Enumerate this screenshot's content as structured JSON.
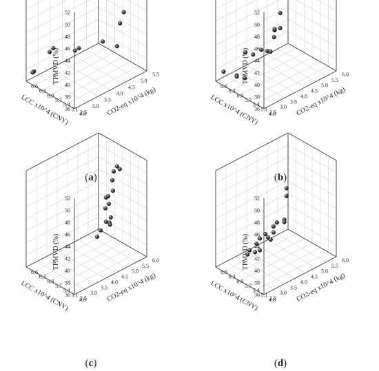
{
  "chart_data": [
    {
      "type": "scatter",
      "panel_label": "a",
      "xlabel": "LCC x10^4 (CNY)",
      "ylabel": "CO2-eq x10^4 (kg)",
      "zlabel": "TPMVD (%)",
      "xlim": [
        4.8,
        6.6
      ],
      "ylim": [
        2.5,
        5.5
      ],
      "zlim": [
        36,
        52
      ],
      "x_ticks": [
        "4.8",
        "5.1",
        "5.4",
        "5.7",
        "6.0",
        "6.3",
        "6.6"
      ],
      "y_ticks": [
        "2.5",
        "3.0",
        "3.5",
        "4.0",
        "4.5",
        "5.0",
        "5.5"
      ],
      "z_ticks": [
        "36",
        "38",
        "40",
        "42",
        "44",
        "46",
        "48",
        "50",
        "52"
      ],
      "points": [
        {
          "x": 5.39,
          "y": 5.0,
          "z": 51.6
        },
        {
          "x": 5.48,
          "y": 5.18,
          "z": 51.2
        },
        {
          "x": 5.5,
          "y": 4.95,
          "z": 47.6
        },
        {
          "x": 5.12,
          "y": 4.9,
          "z": 46.2
        },
        {
          "x": 5.26,
          "y": 4.9,
          "z": 44.0
        },
        {
          "x": 4.92,
          "y": 4.4,
          "z": 42.1
        },
        {
          "x": 5.5,
          "y": 4.45,
          "z": 41.3
        },
        {
          "x": 6.21,
          "y": 4.25,
          "z": 38.8
        },
        {
          "x": 6.22,
          "y": 4.1,
          "z": 38.7
        },
        {
          "x": 6.4,
          "y": 3.25,
          "z": 39.8
        },
        {
          "x": 6.4,
          "y": 3.4,
          "z": 40.1
        },
        {
          "x": 6.53,
          "y": 2.75,
          "z": 37.3
        },
        {
          "x": 6.54,
          "y": 2.7,
          "z": 37.2
        }
      ]
    },
    {
      "type": "scatter",
      "panel_label": "b",
      "xlabel": "LCC x10^4 (CNY)",
      "ylabel": "CO2-eq x10^4 (kg)",
      "zlabel": "TPMVD (%)",
      "xlim": [
        4.8,
        6.6
      ],
      "ylim": [
        2.5,
        6.0
      ],
      "zlim": [
        36,
        52
      ],
      "x_ticks": [
        "4.8",
        "5.1",
        "5.4",
        "5.7",
        "6.0",
        "6.3",
        "6.6"
      ],
      "y_ticks": [
        "2.5",
        "3.0",
        "3.5",
        "4.0",
        "4.5",
        "5.0",
        "5.5",
        "6.0"
      ],
      "z_ticks": [
        "36",
        "38",
        "40",
        "42",
        "44",
        "46",
        "48",
        "50",
        "52"
      ],
      "points": [
        {
          "x": 5.35,
          "y": 4.0,
          "z": 47.8
        },
        {
          "x": 5.35,
          "y": 4.0,
          "z": 45.3
        },
        {
          "x": 5.48,
          "y": 3.9,
          "z": 45.0
        },
        {
          "x": 5.52,
          "y": 3.95,
          "z": 44.6
        },
        {
          "x": 5.5,
          "y": 3.9,
          "z": 43.6
        },
        {
          "x": 5.48,
          "y": 3.7,
          "z": 41.6
        },
        {
          "x": 5.6,
          "y": 3.7,
          "z": 41.4
        },
        {
          "x": 5.75,
          "y": 3.6,
          "z": 41.4
        },
        {
          "x": 5.9,
          "y": 3.4,
          "z": 40.6
        },
        {
          "x": 6.15,
          "y": 3.35,
          "z": 40.4
        },
        {
          "x": 5.9,
          "y": 3.0,
          "z": 37.4
        },
        {
          "x": 6.2,
          "y": 3.0,
          "z": 37.1
        },
        {
          "x": 6.2,
          "y": 3.0,
          "z": 36.9
        },
        {
          "x": 6.5,
          "y": 2.75,
          "z": 37.4
        }
      ]
    },
    {
      "type": "scatter",
      "panel_label": "c",
      "xlabel": "LCC x10^4 (CNY)",
      "ylabel": "CO2-eq x10^4 (kg)",
      "zlabel": "TPMVD (%)",
      "xlim": [
        4.8,
        6.6
      ],
      "ylim": [
        2.5,
        6.0
      ],
      "zlim": [
        36,
        52
      ],
      "x_ticks": [
        "4.8",
        "5.1",
        "5.4",
        "5.7",
        "6.0",
        "6.3",
        "6.6"
      ],
      "y_ticks": [
        "2.5",
        "3.0",
        "3.5",
        "4.0",
        "4.5",
        "5.0",
        "5.5",
        "6.0"
      ],
      "z_ticks": [
        "36",
        "38",
        "40",
        "42",
        "44",
        "46",
        "48",
        "50",
        "52"
      ],
      "points": [
        {
          "x": 5.5,
          "y": 5.6,
          "z": 49.5
        },
        {
          "x": 5.6,
          "y": 5.6,
          "z": 49.7
        },
        {
          "x": 5.65,
          "y": 5.5,
          "z": 48.9
        },
        {
          "x": 5.7,
          "y": 5.5,
          "z": 47.3
        },
        {
          "x": 5.6,
          "y": 5.4,
          "z": 46.0
        },
        {
          "x": 5.7,
          "y": 5.3,
          "z": 45.0
        },
        {
          "x": 5.6,
          "y": 5.2,
          "z": 44.2
        },
        {
          "x": 5.78,
          "y": 5.3,
          "z": 44.6
        },
        {
          "x": 5.65,
          "y": 5.1,
          "z": 43.5
        },
        {
          "x": 5.45,
          "y": 5.1,
          "z": 42.5
        },
        {
          "x": 5.5,
          "y": 5.1,
          "z": 41.5
        },
        {
          "x": 5.4,
          "y": 5.0,
          "z": 41.6
        },
        {
          "x": 5.55,
          "y": 5.0,
          "z": 41.7
        },
        {
          "x": 5.6,
          "y": 4.8,
          "z": 40.5
        },
        {
          "x": 5.65,
          "y": 4.7,
          "z": 39.5
        }
      ]
    },
    {
      "type": "scatter",
      "panel_label": "d",
      "xlabel": "LCC x10^4 (CNY)",
      "ylabel": "CO2-eq x10^4 (kg)",
      "zlabel": "TPMVD (%)",
      "xlim": [
        4.8,
        6.6
      ],
      "ylim": [
        2.5,
        6.0
      ],
      "zlim": [
        36,
        52
      ],
      "x_ticks": [
        "4.8",
        "5.1",
        "5.4",
        "5.7",
        "6.0",
        "6.3",
        "6.6"
      ],
      "y_ticks": [
        "2.5",
        "3.0",
        "3.5",
        "4.0",
        "4.5",
        "5.0",
        "5.5",
        "6.0"
      ],
      "z_ticks": [
        "36",
        "38",
        "40",
        "42",
        "44",
        "46",
        "48",
        "50",
        "52"
      ],
      "points": [
        {
          "x": 5.5,
          "y": 4.5,
          "z": 48.3
        },
        {
          "x": 5.5,
          "y": 4.5,
          "z": 47.0
        },
        {
          "x": 5.35,
          "y": 4.2,
          "z": 44.0
        },
        {
          "x": 5.35,
          "y": 4.2,
          "z": 43.6
        },
        {
          "x": 5.55,
          "y": 4.1,
          "z": 43.2
        },
        {
          "x": 5.6,
          "y": 4.0,
          "z": 42.6
        },
        {
          "x": 5.6,
          "y": 4.0,
          "z": 41.6
        },
        {
          "x": 5.55,
          "y": 3.8,
          "z": 40.9
        },
        {
          "x": 5.65,
          "y": 3.8,
          "z": 41.0
        },
        {
          "x": 5.75,
          "y": 3.8,
          "z": 41.3
        },
        {
          "x": 5.8,
          "y": 3.6,
          "z": 40.8
        },
        {
          "x": 5.85,
          "y": 3.5,
          "z": 40.0
        },
        {
          "x": 5.65,
          "y": 3.4,
          "z": 39.6
        },
        {
          "x": 5.75,
          "y": 3.3,
          "z": 39.2
        },
        {
          "x": 5.95,
          "y": 3.3,
          "z": 39.0
        },
        {
          "x": 5.95,
          "y": 3.2,
          "z": 38.5
        }
      ]
    }
  ]
}
